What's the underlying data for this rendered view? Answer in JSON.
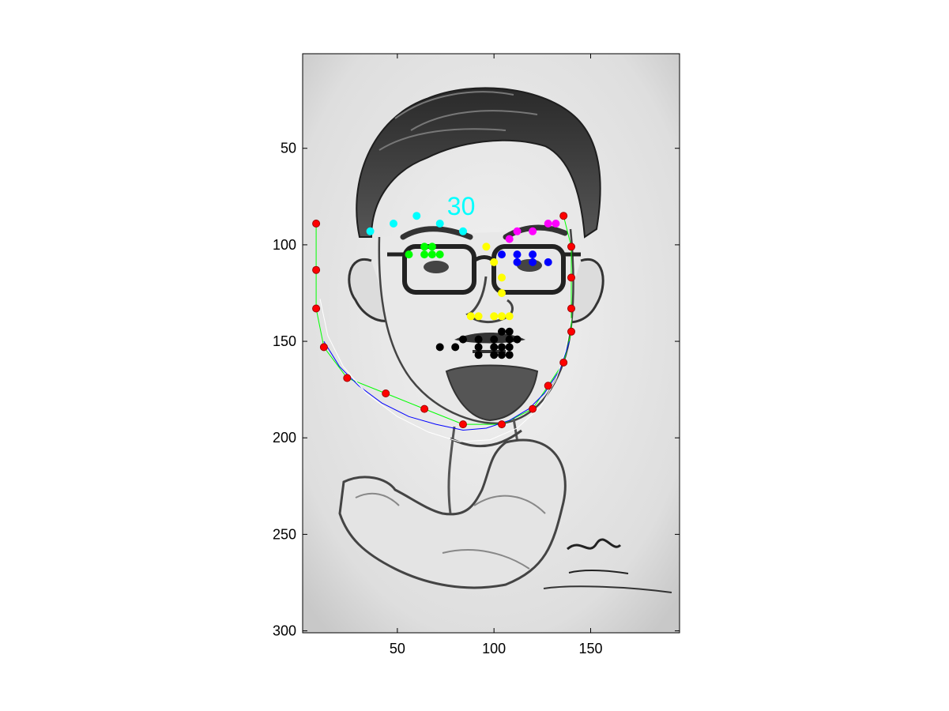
{
  "chart_data": {
    "type": "scatter",
    "title": "",
    "xlabel": "",
    "ylabel": "",
    "xlim": [
      1,
      196
    ],
    "ylim": [
      301,
      1
    ],
    "y_reversed": true,
    "grid": false,
    "legend": "none",
    "x_ticks": [
      50,
      100,
      150
    ],
    "y_ticks": [
      50,
      100,
      150,
      200,
      250,
      300
    ],
    "x_tick_labels": [
      "50",
      "100",
      "150"
    ],
    "y_tick_labels": [
      "50",
      "100",
      "150",
      "200",
      "250",
      "300"
    ],
    "background": "grayscale caricature pencil drawing of a man with glasses and goatee, flexing arm",
    "annotation": {
      "text": "30",
      "x": 83,
      "y": 81,
      "color": "#00ffff"
    },
    "series": [
      {
        "color": "#ff0000",
        "marker": "dot",
        "points": [
          [
            8,
            89
          ],
          [
            8,
            113
          ],
          [
            8,
            133
          ],
          [
            12,
            153
          ],
          [
            24,
            169
          ],
          [
            44,
            177
          ],
          [
            64,
            185
          ],
          [
            84,
            193
          ],
          [
            104,
            193
          ],
          [
            120,
            185
          ],
          [
            128,
            173
          ],
          [
            136,
            161
          ],
          [
            140,
            145
          ],
          [
            140,
            133
          ],
          [
            140,
            117
          ],
          [
            140,
            101
          ],
          [
            136,
            85
          ]
        ]
      },
      {
        "color": "#00ffff",
        "marker": "dot",
        "points": [
          [
            36,
            93
          ],
          [
            48,
            89
          ],
          [
            60,
            85
          ],
          [
            72,
            89
          ],
          [
            84,
            93
          ]
        ]
      },
      {
        "color": "#ff00ff",
        "marker": "dot",
        "points": [
          [
            108,
            97
          ],
          [
            112,
            93
          ],
          [
            120,
            93
          ],
          [
            128,
            89
          ],
          [
            132,
            89
          ]
        ]
      },
      {
        "color": "#00ff00",
        "marker": "dot",
        "points": [
          [
            56,
            105
          ],
          [
            64,
            101
          ],
          [
            68,
            101
          ],
          [
            72,
            105
          ],
          [
            64,
            105
          ],
          [
            68,
            105
          ]
        ]
      },
      {
        "color": "#0000ff",
        "marker": "dot",
        "points": [
          [
            104,
            105
          ],
          [
            112,
            105
          ],
          [
            120,
            105
          ],
          [
            128,
            109
          ],
          [
            112,
            109
          ],
          [
            120,
            109
          ]
        ]
      },
      {
        "color": "#ffff00",
        "marker": "dot",
        "points": [
          [
            96,
            101
          ],
          [
            100,
            109
          ],
          [
            104,
            117
          ],
          [
            104,
            125
          ],
          [
            88,
            137
          ],
          [
            92,
            137
          ],
          [
            100,
            137
          ],
          [
            104,
            137
          ],
          [
            108,
            137
          ]
        ]
      },
      {
        "color": "#000000",
        "marker": "dot",
        "points": [
          [
            72,
            153
          ],
          [
            80,
            153
          ],
          [
            84,
            149
          ],
          [
            92,
            149
          ],
          [
            100,
            149
          ],
          [
            104,
            145
          ],
          [
            108,
            145
          ],
          [
            112,
            149
          ],
          [
            92,
            153
          ],
          [
            100,
            153
          ],
          [
            104,
            153
          ],
          [
            108,
            149
          ],
          [
            108,
            153
          ],
          [
            92,
            157
          ],
          [
            100,
            157
          ],
          [
            104,
            157
          ],
          [
            108,
            157
          ]
        ]
      },
      {
        "color": "#00ff00",
        "marker": "line",
        "points": [
          [
            8,
            89
          ],
          [
            8,
            113
          ],
          [
            8,
            133
          ],
          [
            12,
            153
          ],
          [
            24,
            169
          ],
          [
            44,
            177
          ],
          [
            64,
            185
          ],
          [
            84,
            193
          ],
          [
            104,
            193
          ],
          [
            120,
            185
          ],
          [
            128,
            173
          ],
          [
            136,
            161
          ],
          [
            140,
            145
          ],
          [
            140,
            133
          ],
          [
            140,
            117
          ],
          [
            140,
            101
          ],
          [
            136,
            85
          ]
        ]
      },
      {
        "color": "#0000ff",
        "marker": "line",
        "points": [
          [
            12,
            150
          ],
          [
            20,
            163
          ],
          [
            30,
            173
          ],
          [
            42,
            182
          ],
          [
            56,
            189
          ],
          [
            70,
            193
          ],
          [
            84,
            196
          ],
          [
            96,
            195
          ],
          [
            108,
            191
          ],
          [
            118,
            185
          ],
          [
            126,
            177
          ],
          [
            134,
            165
          ],
          [
            139,
            150
          ]
        ]
      },
      {
        "color": "#ffffff",
        "marker": "line",
        "points": [
          [
            10,
            128
          ],
          [
            14,
            147
          ],
          [
            22,
            163
          ],
          [
            34,
            177
          ],
          [
            50,
            189
          ],
          [
            66,
            197
          ],
          [
            82,
            202
          ],
          [
            98,
            201
          ],
          [
            112,
            195
          ],
          [
            124,
            184
          ],
          [
            132,
            170
          ],
          [
            137,
            155
          ],
          [
            140,
            138
          ]
        ]
      }
    ]
  }
}
